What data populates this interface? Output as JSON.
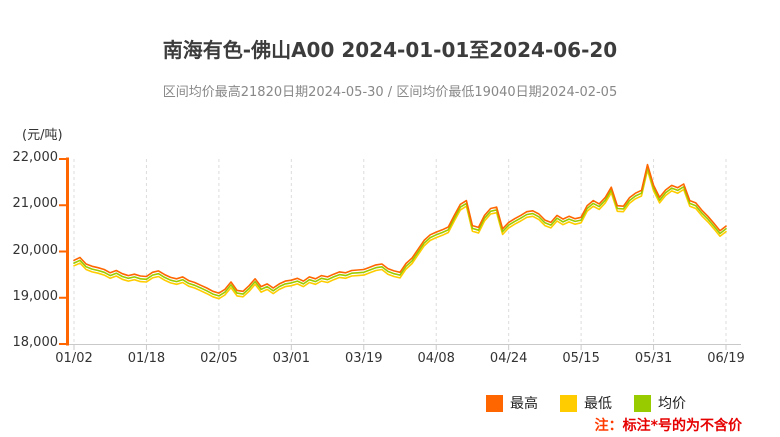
{
  "header": {
    "title": "南海有色-佛山A00 2024-01-01至2024-06-20",
    "subtitle": "区间均价最高21820日期2024-05-30 / 区间均价最低19040日期2024-02-05"
  },
  "note": {
    "prefix": "注：",
    "text": "标注*号的为不含价",
    "prefix_color": "#ff3c00",
    "text_color": "#e60000"
  },
  "chart_data": {
    "type": "line",
    "title": "南海有色-佛山A00 2024-01-01至2024-06-20",
    "xlabel": "",
    "ylabel": "(元/吨)",
    "ylim": [
      18000,
      22000
    ],
    "y_ticks": [
      22000,
      21000,
      20000,
      19000,
      18000
    ],
    "x_tick_labels": [
      "01/02",
      "01/18",
      "02/05",
      "03/01",
      "03/19",
      "04/08",
      "04/24",
      "05/15",
      "05/31",
      "06/19"
    ],
    "x_tick_interval": 12,
    "num_points": 109,
    "grid": "vertical-dashed",
    "grid_color": "#dcdcdc",
    "axis_color": "#ff6600",
    "x_axis_color": "#c9c9c9",
    "legend_position": "bottom",
    "stats": {
      "range_avg_max": 21820,
      "range_avg_max_date": "2024-05-30",
      "range_avg_min": 19040,
      "range_avg_min_date": "2024-02-05"
    },
    "series": [
      {
        "name": "最高",
        "color": "#ff6600",
        "values": [
          19810,
          19870,
          19730,
          19680,
          19650,
          19610,
          19540,
          19590,
          19520,
          19480,
          19510,
          19470,
          19460,
          19550,
          19580,
          19500,
          19440,
          19410,
          19450,
          19370,
          19330,
          19270,
          19210,
          19140,
          19100,
          19180,
          19340,
          19160,
          19140,
          19260,
          19410,
          19240,
          19300,
          19210,
          19300,
          19360,
          19380,
          19420,
          19360,
          19450,
          19410,
          19480,
          19450,
          19510,
          19560,
          19540,
          19590,
          19600,
          19610,
          19660,
          19710,
          19730,
          19630,
          19580,
          19550,
          19740,
          19860,
          20050,
          20240,
          20360,
          20420,
          20470,
          20530,
          20780,
          21020,
          21100,
          20560,
          20520,
          20780,
          20930,
          20960,
          20490,
          20630,
          20710,
          20780,
          20860,
          20880,
          20810,
          20680,
          20630,
          20780,
          20700,
          20760,
          20710,
          20740,
          20990,
          21100,
          21030,
          21170,
          21390,
          20990,
          20980,
          21160,
          21260,
          21320,
          21880,
          21430,
          21170,
          21330,
          21430,
          21380,
          21460,
          21100,
          21050,
          20890,
          20760,
          20610,
          20450,
          20550
        ]
      },
      {
        "name": "最低",
        "color": "#ffcc00",
        "values": [
          19690,
          19750,
          19610,
          19560,
          19530,
          19490,
          19420,
          19470,
          19400,
          19360,
          19390,
          19350,
          19340,
          19430,
          19460,
          19380,
          19320,
          19290,
          19330,
          19250,
          19210,
          19150,
          19090,
          19020,
          18980,
          19060,
          19220,
          19040,
          19020,
          19140,
          19290,
          19120,
          19180,
          19090,
          19180,
          19240,
          19260,
          19300,
          19240,
          19330,
          19290,
          19360,
          19330,
          19390,
          19440,
          19420,
          19470,
          19480,
          19490,
          19540,
          19590,
          19610,
          19510,
          19460,
          19430,
          19620,
          19740,
          19930,
          20120,
          20240,
          20300,
          20350,
          20410,
          20660,
          20900,
          20980,
          20440,
          20400,
          20660,
          20810,
          20840,
          20370,
          20510,
          20590,
          20660,
          20740,
          20760,
          20690,
          20560,
          20510,
          20660,
          20580,
          20640,
          20590,
          20620,
          20870,
          20980,
          20910,
          21050,
          21270,
          20870,
          20860,
          21040,
          21140,
          21200,
          21760,
          21310,
          21050,
          21210,
          21310,
          21260,
          21340,
          20980,
          20930,
          20770,
          20640,
          20490,
          20330,
          20430
        ]
      },
      {
        "name": "均价",
        "color": "#99cc00",
        "values": [
          19750,
          19810,
          19670,
          19620,
          19590,
          19550,
          19480,
          19530,
          19460,
          19420,
          19450,
          19410,
          19400,
          19490,
          19520,
          19440,
          19380,
          19350,
          19390,
          19310,
          19270,
          19210,
          19150,
          19080,
          19040,
          19120,
          19280,
          19100,
          19080,
          19200,
          19350,
          19180,
          19240,
          19150,
          19240,
          19300,
          19320,
          19360,
          19300,
          19390,
          19350,
          19420,
          19390,
          19450,
          19500,
          19480,
          19530,
          19540,
          19550,
          19600,
          19650,
          19670,
          19570,
          19520,
          19490,
          19680,
          19800,
          19990,
          20180,
          20300,
          20360,
          20410,
          20470,
          20720,
          20960,
          21040,
          20500,
          20460,
          20720,
          20870,
          20900,
          20430,
          20570,
          20650,
          20720,
          20800,
          20820,
          20750,
          20620,
          20570,
          20720,
          20640,
          20700,
          20650,
          20680,
          20930,
          21040,
          20970,
          21110,
          21330,
          20930,
          20920,
          21100,
          21200,
          21260,
          21820,
          21370,
          21110,
          21270,
          21370,
          21320,
          21400,
          21040,
          20990,
          20830,
          20700,
          20550,
          20390,
          20490
        ]
      }
    ]
  }
}
